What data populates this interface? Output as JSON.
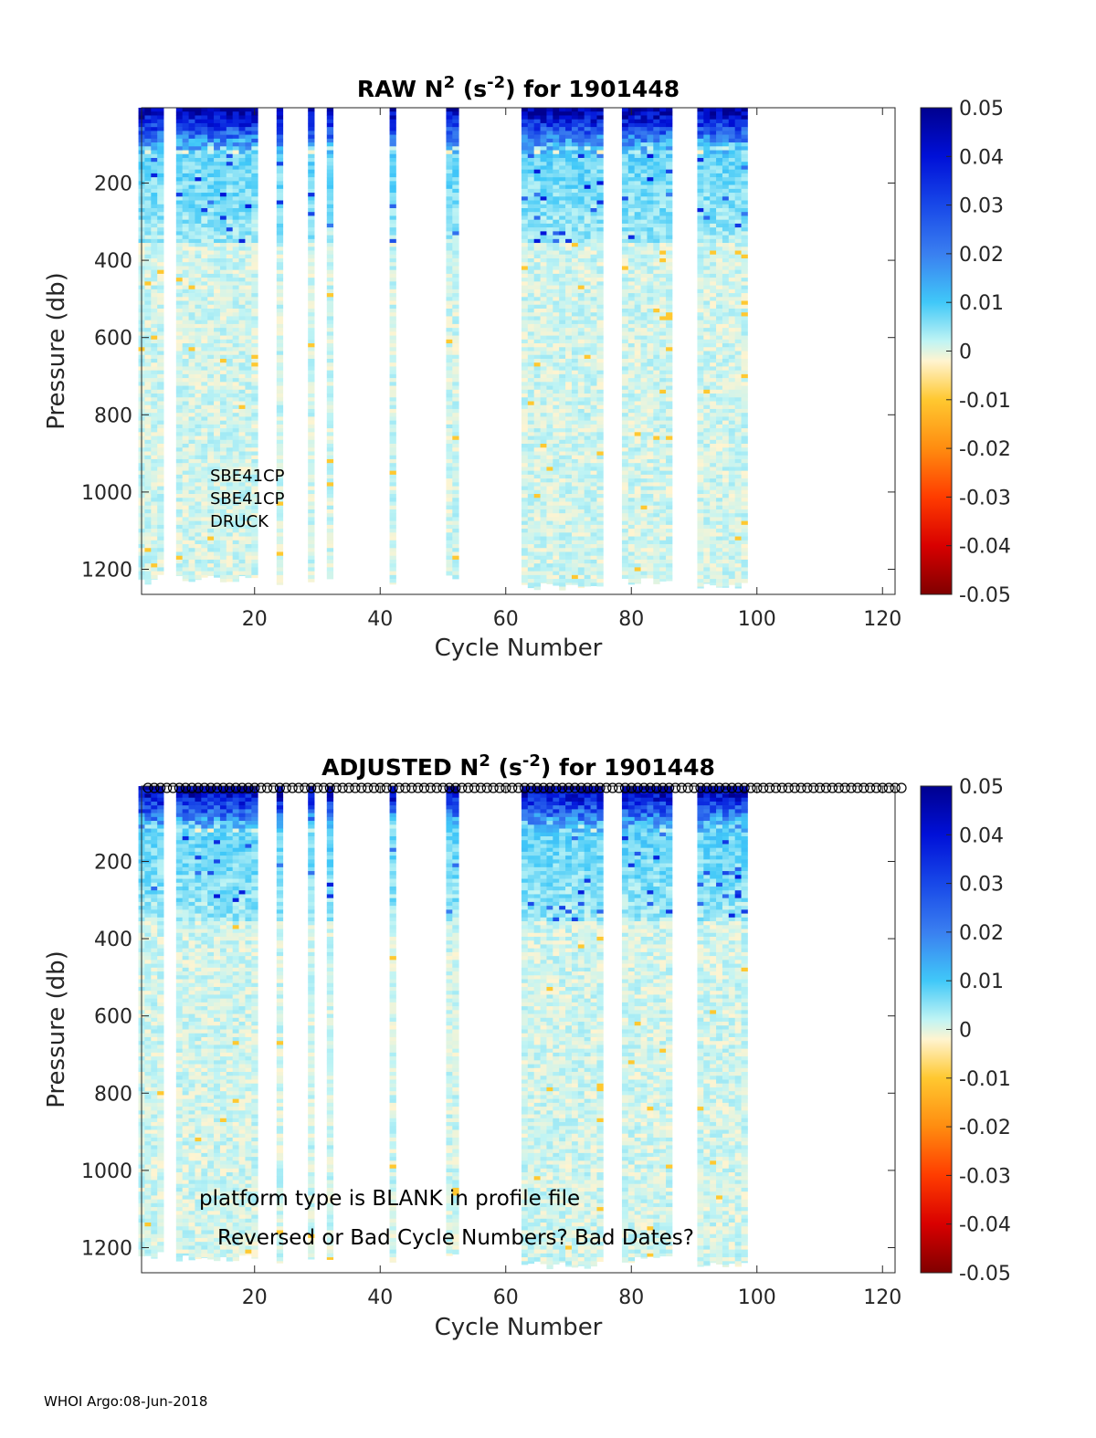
{
  "footer": "WHOI Argo:08-Jun-2018",
  "chart_data": [
    {
      "type": "heatmap",
      "title": "RAW N² (s⁻²) for 1901448",
      "title_parts": {
        "pre": "RAW N",
        "sup1": "2",
        "mid": " (s",
        "sup2": "-2",
        "post": ") for 1901448"
      },
      "xlabel": "Cycle Number",
      "ylabel": "Pressure (db)",
      "xlim": [
        2,
        122
      ],
      "ylim": [
        1265,
        5
      ],
      "xticks": [
        20,
        40,
        60,
        80,
        100,
        120
      ],
      "yticks": [
        200,
        400,
        600,
        800,
        1000,
        1200
      ],
      "colorbar": {
        "clim": [
          -0.05,
          0.05
        ],
        "ticks": [
          "0.05",
          "0.04",
          "0.03",
          "0.02",
          "0.01",
          "0",
          "-0.01",
          "-0.02",
          "-0.03",
          "-0.04",
          "-0.05"
        ]
      },
      "annotations": [
        "SBE41CP",
        "SBE41CP",
        "DRUCK"
      ],
      "profile_markers": false,
      "cycles_with_data": [
        {
          "range": [
            2,
            4
          ],
          "max_pressure": 1240
        },
        {
          "range": [
            5,
            5
          ],
          "max_pressure": 1230
        },
        {
          "range": [
            8,
            20
          ],
          "max_pressure": 1235
        },
        {
          "range": [
            24,
            24
          ],
          "max_pressure": 1245
        },
        {
          "range": [
            29,
            29
          ],
          "max_pressure": 1245
        },
        {
          "range": [
            32,
            32
          ],
          "max_pressure": 1240
        },
        {
          "range": [
            42,
            42
          ],
          "max_pressure": 1250
        },
        {
          "range": [
            51,
            52
          ],
          "max_pressure": 1225
        },
        {
          "range": [
            63,
            75
          ],
          "max_pressure": 1255
        },
        {
          "range": [
            79,
            86
          ],
          "max_pressure": 1240
        },
        {
          "range": [
            91,
            97
          ],
          "max_pressure": 1250
        },
        {
          "range": [
            98,
            98
          ],
          "max_pressure": 1240
        }
      ],
      "surface_layer": {
        "pressure_range": [
          5,
          120
        ],
        "value": 0.05
      }
    },
    {
      "type": "heatmap",
      "title": "ADJUSTED N² (s⁻²) for 1901448",
      "title_parts": {
        "pre": "ADJUSTED N",
        "sup1": "2",
        "mid": " (s",
        "sup2": "-2",
        "post": ") for 1901448"
      },
      "xlabel": "Cycle Number",
      "ylabel": "Pressure (db)",
      "xlim": [
        2,
        122
      ],
      "ylim": [
        1265,
        5
      ],
      "xticks": [
        20,
        40,
        60,
        80,
        100,
        120
      ],
      "yticks": [
        200,
        400,
        600,
        800,
        1000,
        1200
      ],
      "colorbar": {
        "clim": [
          -0.05,
          0.05
        ],
        "ticks": [
          "0.05",
          "0.04",
          "0.03",
          "0.02",
          "0.01",
          "0",
          "-0.01",
          "-0.02",
          "-0.03",
          "-0.04",
          "-0.05"
        ]
      },
      "annotations": [
        "platform type is BLANK in profile file",
        "Reversed or Bad Cycle Numbers? Bad Dates?"
      ],
      "profile_markers": true,
      "marker_range": [
        2,
        122
      ],
      "cycles_with_data": [
        {
          "range": [
            2,
            4
          ],
          "max_pressure": 1240
        },
        {
          "range": [
            5,
            5
          ],
          "max_pressure": 1230
        },
        {
          "range": [
            8,
            20
          ],
          "max_pressure": 1235
        },
        {
          "range": [
            24,
            24
          ],
          "max_pressure": 1245
        },
        {
          "range": [
            29,
            29
          ],
          "max_pressure": 1245
        },
        {
          "range": [
            32,
            32
          ],
          "max_pressure": 1240
        },
        {
          "range": [
            42,
            42
          ],
          "max_pressure": 1250
        },
        {
          "range": [
            51,
            52
          ],
          "max_pressure": 1225
        },
        {
          "range": [
            63,
            75
          ],
          "max_pressure": 1255
        },
        {
          "range": [
            79,
            86
          ],
          "max_pressure": 1240
        },
        {
          "range": [
            91,
            97
          ],
          "max_pressure": 1250
        },
        {
          "range": [
            98,
            98
          ],
          "max_pressure": 1240
        }
      ],
      "surface_layer": {
        "pressure_range": [
          5,
          120
        ],
        "value": 0.05
      }
    }
  ]
}
